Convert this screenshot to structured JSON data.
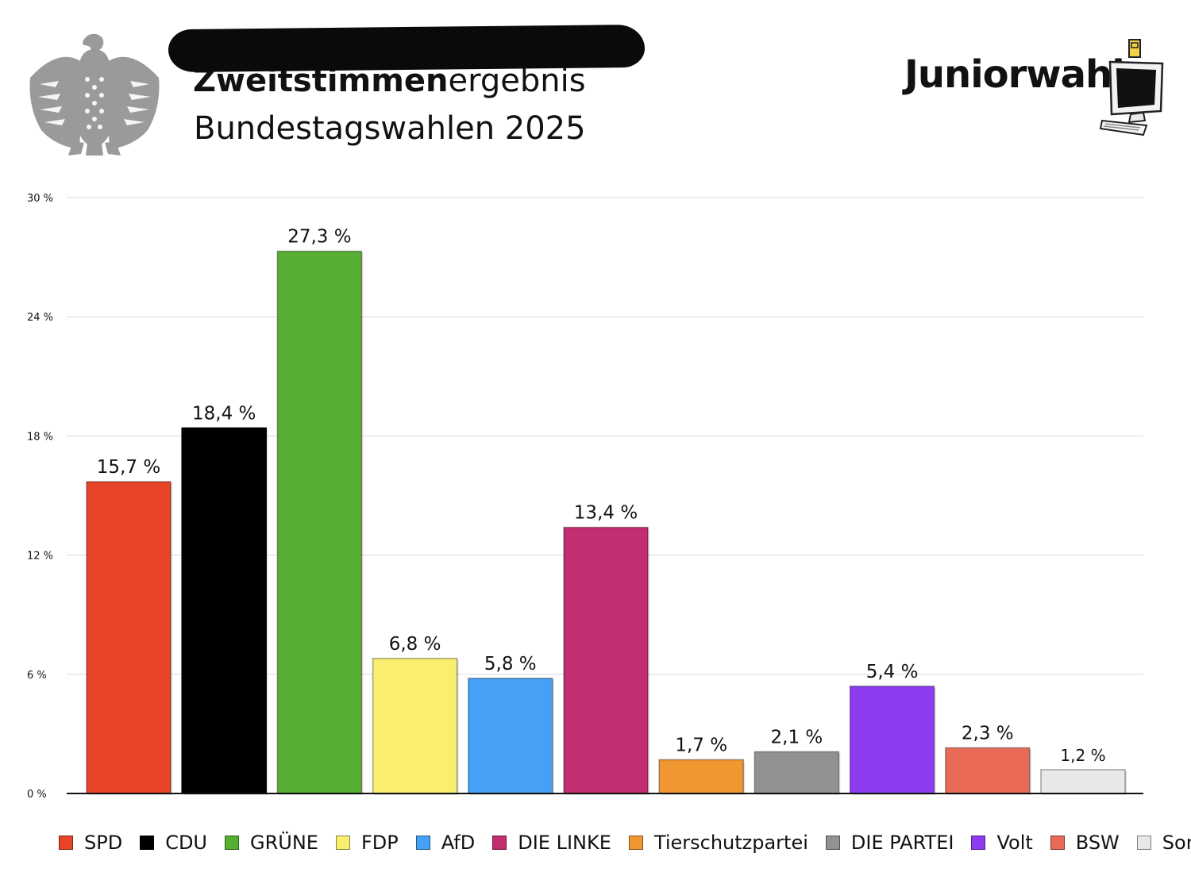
{
  "header": {
    "title_bold": "Zweitstimmen",
    "title_rest": "ergebnis",
    "subtitle": "Bundestagswahlen 2025"
  },
  "logo": {
    "text": "Juniorwahl",
    "icon": "computer-monitor-icon"
  },
  "emblem": {
    "icon": "federal-eagle-icon",
    "color": "#9a9a9a"
  },
  "chart_data": {
    "type": "bar",
    "title": "Zweitstimmenergebnis",
    "subtitle": "Bundestagswahlen 2025",
    "categories": [
      "SPD",
      "CDU",
      "GRÜNE",
      "FDP",
      "AfD",
      "DIE LINKE",
      "Tierschutzpartei",
      "DIE PARTEI",
      "Volt",
      "BSW",
      "Sonstige"
    ],
    "values": [
      15.7,
      18.4,
      27.3,
      6.8,
      5.8,
      13.4,
      1.7,
      2.1,
      5.4,
      2.3,
      1.2
    ],
    "data_labels": [
      "15,7 %",
      "18,4 %",
      "27,3 %",
      "6,8 %",
      "5,8 %",
      "13,4 %",
      "1,7 %",
      "2,1 %",
      "5,4 %",
      "2,3 %",
      "1,2 %"
    ],
    "colors": [
      "#e84427",
      "#000000",
      "#56ae32",
      "#f9ee70",
      "#46a0f5",
      "#c22e70",
      "#f09732",
      "#929292",
      "#8d3cf2",
      "#ea6a58",
      "#e8e8e8"
    ],
    "ylim": [
      0,
      30
    ],
    "yticks": [
      0,
      6,
      12,
      18,
      24,
      30
    ],
    "ytick_labels": [
      "0 %",
      "6 %",
      "12 %",
      "18 %",
      "24 %",
      "30 %"
    ],
    "xlabel": "",
    "ylabel": "",
    "grid": true,
    "legend": "bottom"
  }
}
